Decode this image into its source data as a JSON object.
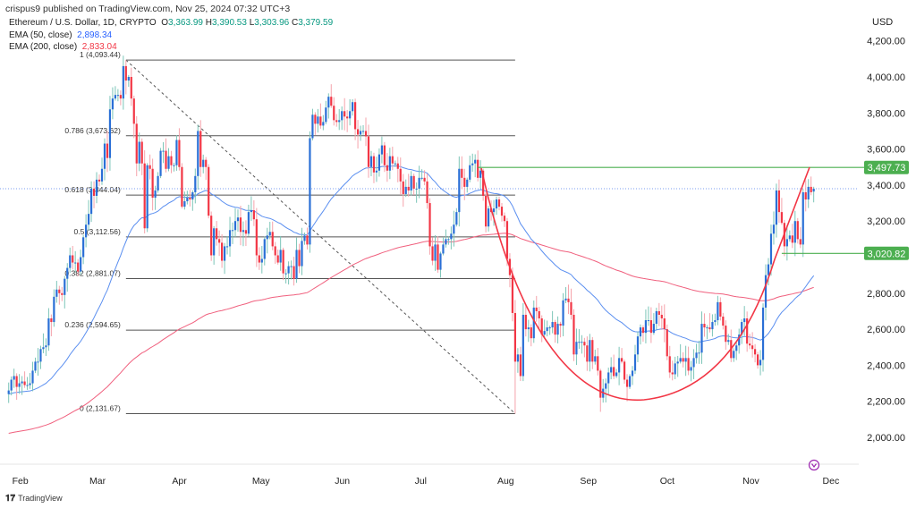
{
  "published": "crispus9 published on TradingView.com, Nov 25, 2024 07:32 UTC+3",
  "legend": {
    "symbol": "Ethereum / U.S. Dollar, 1D, CRYPTO",
    "o_label": "O",
    "o": "3,363.99",
    "h_label": "H",
    "h": "3,390.53",
    "l_label": "L",
    "l": "3,303.96",
    "c_label": "C",
    "c": "3,379.59",
    "ema50_label": "EMA (50, close)",
    "ema50": "2,898.34",
    "ema200_label": "EMA (200, close)",
    "ema200": "2,833.04"
  },
  "currency": "USD",
  "brand": "TradingView",
  "colors": {
    "up": "#2a6fd6",
    "up_wick": "#7cc5b8",
    "down": "#f23645",
    "down_wick": "#f5a3ab",
    "ema50": "#5b8ff0",
    "ema200": "#f0607e",
    "levels": "#4caf50",
    "fib": "#555555",
    "pattern": "#f23645"
  },
  "chart_data": {
    "type": "candlestick",
    "title": "",
    "start_date": "2024-01-28",
    "closes": [
      2260,
      2320,
      2340,
      2280,
      2300,
      2310,
      2290,
      2290,
      2300,
      2370,
      2420,
      2420,
      2490,
      2500,
      2510,
      2660,
      2640,
      2780,
      2820,
      2800,
      2790,
      2880,
      2940,
      3010,
      2970,
      2970,
      2920,
      3000,
      3110,
      3180,
      3240,
      3380,
      3340,
      3430,
      3420,
      3490,
      3630,
      3550,
      3820,
      3880,
      3900,
      3900,
      3880,
      4060,
      3980,
      4000,
      3880,
      3740,
      3520,
      3640,
      3520,
      3160,
      3510,
      3490,
      3330,
      3370,
      3450,
      3590,
      3590,
      3490,
      3560,
      3510,
      3510,
      3650,
      3500,
      3280,
      3310,
      3330,
      3320,
      3360,
      3450,
      3700,
      3500,
      3540,
      3500,
      3230,
      3010,
      3160,
      3100,
      3080,
      2980,
      3060,
      3060,
      3150,
      3150,
      3200,
      3220,
      3140,
      3150,
      3130,
      3250,
      3260,
      3210,
      3010,
      2970,
      2990,
      3100,
      3120,
      3140,
      3060,
      3010,
      2970,
      3040,
      2910,
      2910,
      2950,
      2950,
      2880,
      3040,
      2950,
      3090,
      3120,
      3070,
      3660,
      3790,
      3740,
      3780,
      3730,
      3750,
      3830,
      3890,
      3840,
      3760,
      3750,
      3760,
      3810,
      3780,
      3770,
      3810,
      3860,
      3710,
      3680,
      3700,
      3700,
      3670,
      3500,
      3560,
      3470,
      3480,
      3570,
      3620,
      3510,
      3480,
      3560,
      3520,
      3520,
      3490,
      3420,
      3350,
      3390,
      3370,
      3450,
      3380,
      3380,
      3440,
      3440,
      3420,
      3300,
      3060,
      2980,
      3070,
      2930,
      3020,
      3070,
      3100,
      3100,
      3130,
      3180,
      3250,
      3490,
      3440,
      3390,
      3430,
      3510,
      3520,
      3540,
      3440,
      3480,
      3340,
      3170,
      3270,
      3250,
      3270,
      3320,
      3280,
      3230,
      3200,
      2990,
      2900,
      2690,
      2420,
      2460,
      2340,
      2680,
      2600,
      2610,
      2550,
      2720,
      2700,
      2660,
      2570,
      2590,
      2610,
      2610,
      2640,
      2570,
      2630,
      2620,
      2760,
      2770,
      2750,
      2680,
      2460,
      2530,
      2530,
      2530,
      2510,
      2420,
      2540,
      2420,
      2450,
      2370,
      2220,
      2270,
      2300,
      2360,
      2390,
      2340,
      2360,
      2440,
      2420,
      2320,
      2280,
      2340,
      2370,
      2460,
      2560,
      2610,
      2580,
      2650,
      2650,
      2580,
      2630,
      2700,
      2680,
      2660,
      2600,
      2450,
      2360,
      2350,
      2410,
      2420,
      2440,
      2420,
      2440,
      2370,
      2390,
      2440,
      2470,
      2470,
      2630,
      2610,
      2610,
      2600,
      2640,
      2650,
      2750,
      2670,
      2620,
      2530,
      2540,
      2440,
      2480,
      2510,
      2570,
      2640,
      2660,
      2520,
      2510,
      2490,
      2460,
      2400,
      2430,
      2720,
      2900,
      2960,
      3130,
      3180,
      3370,
      3250,
      3190,
      3060,
      3100,
      3120,
      3080,
      3200,
      3100,
      3070,
      3360,
      3320,
      3390,
      3360,
      3379.59
    ],
    "last_candle": {
      "open": 3363.99,
      "high": 3390.53,
      "low": 3303.96,
      "close": 3379.59
    },
    "extremes": {
      "high": {
        "date": "2024-03-12",
        "value": 4093.44
      },
      "low": {
        "date": "2024-08-05",
        "value": 2131.67
      }
    },
    "indicators": [
      {
        "name": "EMA (50, close)",
        "last": 2898.34
      },
      {
        "name": "EMA (200, close)",
        "last": 2833.04
      }
    ],
    "ylim": [
      1850,
      4300
    ],
    "y_ticks": [
      "4,200.00",
      "4,000.00",
      "3,800.00",
      "3,600.00",
      "3,400.00",
      "3,200.00",
      "2,800.00",
      "2,600.00",
      "2,400.00",
      "2,200.00",
      "2,000.00"
    ],
    "y_tick_values": [
      4200,
      4000,
      3800,
      3600,
      3400,
      3200,
      2800,
      2600,
      2400,
      2200,
      2000
    ],
    "x_ticks": [
      {
        "label": "Feb",
        "date": "2024-02-01"
      },
      {
        "label": "Mar",
        "date": "2024-03-01"
      },
      {
        "label": "Apr",
        "date": "2024-04-01"
      },
      {
        "label": "May",
        "date": "2024-05-01"
      },
      {
        "label": "Jun",
        "date": "2024-06-01"
      },
      {
        "label": "Jul",
        "date": "2024-07-01"
      },
      {
        "label": "Aug",
        "date": "2024-08-01"
      },
      {
        "label": "Sep",
        "date": "2024-09-01"
      },
      {
        "label": "Oct",
        "date": "2024-10-01"
      },
      {
        "label": "Nov",
        "date": "2024-11-01"
      },
      {
        "label": "Dec",
        "date": "2024-12-01"
      }
    ],
    "fib_levels": [
      {
        "label": "1 (4,093.44)",
        "value": 4093.44
      },
      {
        "label": "0.786 (3,673.62)",
        "value": 3673.62
      },
      {
        "label": "0.618 (3,344.04)",
        "value": 3344.04
      },
      {
        "label": "0.5 (3,112.56)",
        "value": 3112.56
      },
      {
        "label": "0.382 (2,881.07)",
        "value": 2881.07
      },
      {
        "label": "0.236 (2,594.65)",
        "value": 2594.65
      },
      {
        "label": "0 (2,131.67)",
        "value": 2131.67
      }
    ],
    "horizontal_levels": [
      {
        "label": "3,497.73",
        "value": 3497.73,
        "from": "2024-07-22"
      },
      {
        "label": "3,020.82",
        "value": 3020.82,
        "from": "2024-11-13"
      }
    ],
    "current_price": 3379.59
  }
}
